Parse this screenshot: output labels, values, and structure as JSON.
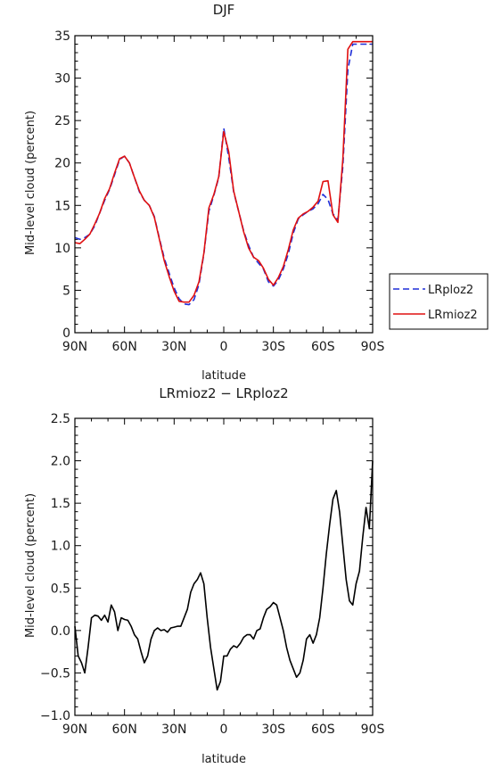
{
  "chart_data": [
    {
      "type": "line",
      "title": "DJF",
      "xlabel": "latitude",
      "ylabel": "Mid-level cloud (percent)",
      "xlim": [
        90,
        -90
      ],
      "ylim": [
        0,
        35
      ],
      "x_ticks": [
        90,
        60,
        30,
        0,
        -30,
        -60,
        -90
      ],
      "x_tick_labels": [
        "90N",
        "60N",
        "30N",
        "0",
        "30S",
        "60S",
        "90S"
      ],
      "y_ticks": [
        0,
        5,
        10,
        15,
        20,
        25,
        30,
        35
      ],
      "y_tick_labels": [
        "0",
        "5",
        "10",
        "15",
        "20",
        "25",
        "30",
        "35"
      ],
      "legend_position": "outside-right",
      "grid": false,
      "x": [
        90,
        87,
        84,
        81,
        78,
        75,
        72,
        69,
        66,
        63,
        60,
        57,
        54,
        51,
        48,
        45,
        42,
        39,
        36,
        33,
        30,
        27,
        24,
        21,
        18,
        15,
        12,
        9,
        6,
        3,
        0,
        -3,
        -6,
        -9,
        -12,
        -15,
        -18,
        -21,
        -24,
        -27,
        -30,
        -33,
        -36,
        -39,
        -42,
        -45,
        -48,
        -51,
        -54,
        -57,
        -60,
        -63,
        -66,
        -69,
        -72,
        -75,
        -78,
        -81,
        -84,
        -87,
        -90
      ],
      "series": [
        {
          "name": "LRploz2",
          "color": "#1f2fd8",
          "dash": "dashed",
          "values": [
            11.2,
            11.0,
            11.2,
            11.6,
            12.6,
            14.1,
            15.6,
            16.9,
            18.6,
            20.4,
            20.8,
            20.0,
            18.3,
            16.6,
            15.6,
            15.0,
            13.7,
            11.2,
            8.8,
            7.0,
            5.3,
            4.0,
            3.4,
            3.3,
            3.9,
            5.7,
            9.3,
            14.3,
            16.2,
            18.3,
            24.1,
            20.6,
            16.6,
            14.3,
            12.0,
            10.3,
            8.9,
            8.2,
            7.5,
            6.0,
            5.5,
            6.2,
            7.5,
            9.3,
            11.7,
            13.4,
            13.9,
            14.3,
            14.6,
            15.2,
            16.3,
            15.7,
            14.0,
            13.3,
            19.6,
            31.0,
            34.0,
            34.0,
            34.0,
            34.0,
            34.0
          ]
        },
        {
          "name": "LRmioz2",
          "color": "#e01010",
          "dash": "solid",
          "values": [
            10.6,
            10.5,
            11.0,
            11.6,
            12.8,
            14.1,
            15.8,
            17.0,
            18.8,
            20.5,
            20.8,
            20.0,
            18.3,
            16.7,
            15.6,
            15.0,
            13.6,
            11.1,
            8.5,
            6.6,
            4.9,
            3.7,
            3.6,
            3.6,
            4.4,
            6.0,
            9.4,
            14.7,
            16.3,
            18.4,
            23.7,
            21.3,
            16.7,
            14.3,
            11.9,
            10.0,
            8.9,
            8.5,
            7.6,
            6.3,
            5.6,
            6.5,
            7.8,
            9.8,
            12.1,
            13.5,
            14.0,
            14.3,
            14.8,
            15.5,
            17.8,
            17.9,
            13.9,
            13.0,
            20.5,
            33.4,
            34.3,
            34.3,
            34.3,
            34.3,
            34.3
          ]
        }
      ]
    },
    {
      "type": "line",
      "title": "LRmioz2 − LRploz2",
      "xlabel": "latitude",
      "ylabel": "Mid-level cloud (percent)",
      "xlim": [
        90,
        -90
      ],
      "ylim": [
        -1.0,
        2.5
      ],
      "x_ticks": [
        90,
        60,
        30,
        0,
        -30,
        -60,
        -90
      ],
      "x_tick_labels": [
        "90N",
        "60N",
        "30N",
        "0",
        "30S",
        "60S",
        "90S"
      ],
      "y_ticks": [
        -1.0,
        -0.5,
        0.0,
        0.5,
        1.0,
        1.5,
        2.0,
        2.5
      ],
      "y_tick_labels": [
        "−1.0",
        "−0.5",
        "0.0",
        "0.5",
        "1.0",
        "1.5",
        "2.0",
        "2.5"
      ],
      "grid": false,
      "x": [
        90,
        88,
        86,
        84,
        82,
        80,
        78,
        76,
        74,
        72,
        70,
        68,
        66,
        64,
        62,
        60,
        58,
        56,
        54,
        52,
        50,
        48,
        46,
        44,
        42,
        40,
        38,
        36,
        34,
        32,
        30,
        28,
        26,
        24,
        22,
        20,
        18,
        16,
        14,
        12,
        10,
        8,
        6,
        4,
        2,
        0,
        -2,
        -4,
        -6,
        -8,
        -10,
        -12,
        -14,
        -16,
        -18,
        -20,
        -22,
        -24,
        -26,
        -28,
        -30,
        -32,
        -34,
        -36,
        -38,
        -40,
        -42,
        -44,
        -46,
        -48,
        -50,
        -52,
        -54,
        -56,
        -58,
        -60,
        -62,
        -64,
        -66,
        -68,
        -70,
        -72,
        -74,
        -76,
        -78,
        -80,
        -82,
        -84,
        -86,
        -88,
        -90
      ],
      "series": [
        {
          "color": "#000000",
          "values": [
            0.05,
            -0.3,
            -0.38,
            -0.5,
            -0.2,
            0.15,
            0.18,
            0.17,
            0.12,
            0.18,
            0.1,
            0.3,
            0.22,
            0.0,
            0.15,
            0.13,
            0.12,
            0.05,
            -0.05,
            -0.1,
            -0.25,
            -0.38,
            -0.3,
            -0.1,
            0.0,
            0.03,
            0.0,
            0.01,
            -0.02,
            0.03,
            0.04,
            0.05,
            0.05,
            0.15,
            0.25,
            0.45,
            0.55,
            0.6,
            0.68,
            0.55,
            0.15,
            -0.2,
            -0.45,
            -0.7,
            -0.6,
            -0.3,
            -0.3,
            -0.22,
            -0.18,
            -0.2,
            -0.15,
            -0.08,
            -0.05,
            -0.05,
            -0.1,
            0.0,
            0.02,
            0.15,
            0.25,
            0.28,
            0.33,
            0.3,
            0.15,
            0.0,
            -0.2,
            -0.35,
            -0.45,
            -0.55,
            -0.5,
            -0.35,
            -0.1,
            -0.05,
            -0.15,
            -0.05,
            0.15,
            0.5,
            0.9,
            1.25,
            1.55,
            1.65,
            1.4,
            1.0,
            0.6,
            0.35,
            0.3,
            0.55,
            0.7,
            1.1,
            1.45,
            1.2,
            2.0
          ]
        }
      ]
    }
  ]
}
